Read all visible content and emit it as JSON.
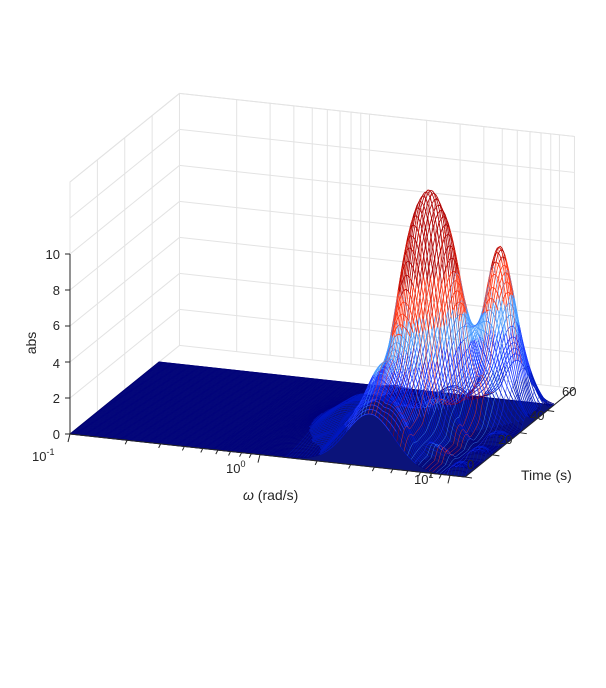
{
  "chart_data": {
    "type": "surface",
    "xlabel_symbol": "ω",
    "xlabel_unit": "(rad/s)",
    "ylabel": "Time (s)",
    "zlabel": "abs",
    "x_scale": "log",
    "xlim": [
      0.1,
      12
    ],
    "ylim": [
      0,
      65
    ],
    "zlim": [
      0,
      10
    ],
    "z_ticks": [
      "0",
      "2",
      "4",
      "6",
      "8",
      "10"
    ],
    "y_ticks": [
      "0",
      "20",
      "40",
      "60"
    ],
    "x_tick_bases": [
      "10",
      "10",
      "10"
    ],
    "x_tick_exponents": [
      "-1",
      "0",
      "1"
    ],
    "grid": true,
    "colormap": [
      "#00007a",
      "#0018c0",
      "#1f3cff",
      "#4a9cff",
      "#ff3a1a",
      "#b00000"
    ],
    "peaks": [
      {
        "omega": 4.2,
        "time": 28,
        "value": 9.9
      },
      {
        "omega": 5.4,
        "time": 36,
        "value": 9.5
      },
      {
        "omega": 7.8,
        "time": 52,
        "value": 8.8
      },
      {
        "omega": 3.8,
        "time": 10,
        "value": 4.2
      },
      {
        "omega": 2.0,
        "time": 30,
        "value": 1.6
      }
    ]
  }
}
